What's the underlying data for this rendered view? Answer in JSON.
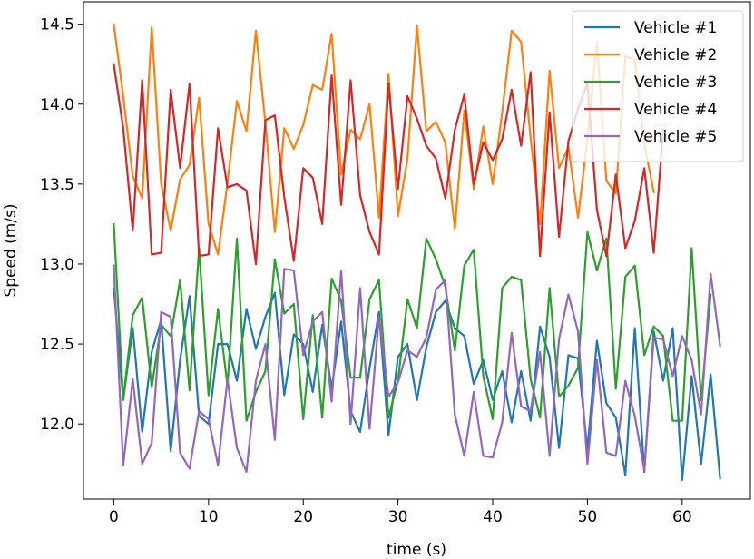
{
  "chart_data": {
    "type": "line",
    "title": "",
    "xlabel": "time (s)",
    "ylabel": "Speed (m/s)",
    "xlim": [
      -3.2,
      67.2
    ],
    "ylim": [
      11.53,
      14.64
    ],
    "xticks": [
      0,
      10,
      20,
      30,
      40,
      50,
      60
    ],
    "yticks": [
      12.0,
      12.5,
      13.0,
      13.5,
      14.0,
      14.5
    ],
    "ytick_labels": [
      "12.0",
      "12.5",
      "13.0",
      "13.5",
      "14.0",
      "14.5"
    ],
    "legend_position": "top-right",
    "series": [
      {
        "name": "Vehicle #1",
        "color": "#1f77b4",
        "values": [
          12.85,
          12.15,
          12.6,
          11.95,
          12.45,
          12.65,
          11.83,
          12.4,
          12.8,
          12.05,
          12.0,
          12.5,
          12.5,
          12.27,
          12.72,
          12.47,
          12.67,
          12.82,
          12.18,
          12.56,
          12.5,
          12.2,
          12.62,
          12.22,
          12.64,
          12.08,
          11.95,
          12.35,
          12.7,
          11.93,
          12.42,
          12.5,
          12.15,
          12.48,
          12.7,
          12.77,
          12.6,
          12.55,
          12.25,
          12.4,
          12.15,
          12.33,
          12.01,
          12.33,
          12.02,
          12.61,
          12.42,
          11.85,
          12.43,
          12.41,
          11.84,
          12.52,
          12.13,
          12.04,
          11.68,
          12.6,
          11.7,
          12.58,
          12.27,
          12.6,
          11.65,
          12.3,
          11.75,
          12.31,
          11.66
        ]
      },
      {
        "name": "Vehicle #2",
        "color": "#ff7f0e",
        "values": [
          14.5,
          14.05,
          13.55,
          13.41,
          14.48,
          13.5,
          13.21,
          13.53,
          13.62,
          14.04,
          13.25,
          13.06,
          13.51,
          14.02,
          13.83,
          14.46,
          13.88,
          13.2,
          13.85,
          13.72,
          13.87,
          14.12,
          14.09,
          14.44,
          13.56,
          13.84,
          13.78,
          14.0,
          13.29,
          14.19,
          13.3,
          13.66,
          14.49,
          13.83,
          13.89,
          13.76,
          13.22,
          13.96,
          13.47,
          13.86,
          13.5,
          13.95,
          14.46,
          14.39,
          13.79,
          13.25,
          14.21,
          13.6,
          13.73,
          13.29,
          13.78,
          14.39,
          13.52,
          13.44,
          14.3,
          14.28,
          13.75,
          13.45
        ]
      },
      {
        "name": "Vehicle #3",
        "color": "#2ca02c",
        "values": [
          13.25,
          12.15,
          12.68,
          12.79,
          12.23,
          12.62,
          12.55,
          12.9,
          12.21,
          13.1,
          12.18,
          12.72,
          12.24,
          13.16,
          12.02,
          12.2,
          12.33,
          13.03,
          12.69,
          12.75,
          12.03,
          12.68,
          12.04,
          12.91,
          12.77,
          12.29,
          12.29,
          12.78,
          12.9,
          12.04,
          12.27,
          12.78,
          12.6,
          13.16,
          13.03,
          12.86,
          12.46,
          12.99,
          13.09,
          12.3,
          12.03,
          12.85,
          12.92,
          12.9,
          12.28,
          12.04,
          12.85,
          12.17,
          12.24,
          12.35,
          13.2,
          12.96,
          13.16,
          12.22,
          12.92,
          12.99,
          12.43,
          12.61,
          12.55,
          12.02,
          12.02,
          13.1,
          12.15,
          12.81
        ]
      },
      {
        "name": "Vehicle #4",
        "color": "#d62728",
        "values": [
          14.25,
          13.85,
          13.21,
          14.15,
          13.06,
          13.07,
          14.09,
          13.6,
          14.13,
          13.05,
          13.06,
          13.85,
          13.48,
          13.5,
          13.46,
          13.0,
          13.9,
          13.93,
          13.42,
          13.02,
          13.6,
          13.54,
          13.25,
          14.18,
          13.37,
          14.15,
          13.43,
          13.2,
          13.06,
          14.13,
          13.47,
          14.05,
          13.91,
          13.74,
          13.66,
          13.41,
          13.84,
          14.06,
          13.5,
          13.76,
          13.65,
          13.78,
          14.09,
          13.74,
          14.2,
          13.05,
          13.95,
          13.17,
          13.77,
          13.97,
          14.13,
          13.34,
          13.05,
          13.56,
          13.1,
          13.27,
          13.6,
          13.07,
          13.84
        ]
      },
      {
        "name": "Vehicle #5",
        "color": "#9467bd",
        "values": [
          12.99,
          11.74,
          12.28,
          11.75,
          11.88,
          12.7,
          12.67,
          11.82,
          11.72,
          12.08,
          12.03,
          11.74,
          12.28,
          11.85,
          11.7,
          12.27,
          12.5,
          11.9,
          12.97,
          12.96,
          12.43,
          12.64,
          12.7,
          12.14,
          12.96,
          12.0,
          12.85,
          11.97,
          12.67,
          12.17,
          12.26,
          12.46,
          12.42,
          12.54,
          12.84,
          12.9,
          12.06,
          11.8,
          12.2,
          11.8,
          11.79,
          12.01,
          12.57,
          12.11,
          12.08,
          12.45,
          11.8,
          12.53,
          12.81,
          12.58,
          11.75,
          12.4,
          11.82,
          11.8,
          12.27,
          12.05,
          11.71,
          12.54,
          12.53,
          12.3,
          12.55,
          12.4,
          12.06,
          12.94,
          12.49
        ]
      }
    ]
  }
}
